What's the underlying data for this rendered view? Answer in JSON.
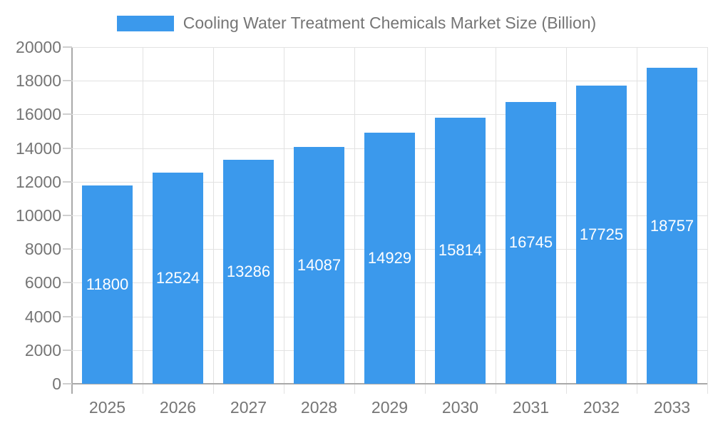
{
  "chart_data": {
    "type": "bar",
    "title": "Cooling Water Treatment Chemicals Market Size (Billion)",
    "categories": [
      "2025",
      "2026",
      "2027",
      "2028",
      "2029",
      "2030",
      "2031",
      "2032",
      "2033"
    ],
    "values": [
      11800,
      12524,
      13286,
      14087,
      14929,
      15814,
      16745,
      17725,
      18757
    ],
    "series": [
      {
        "name": "Cooling Water Treatment Chemicals Market Size (Billion)",
        "values": [
          11800,
          12524,
          13286,
          14087,
          14929,
          15814,
          16745,
          17725,
          18757
        ]
      }
    ],
    "xlabel": "",
    "ylabel": "",
    "ylim": [
      0,
      20000
    ],
    "ytick_step": 2000,
    "yticks": [
      0,
      2000,
      4000,
      6000,
      8000,
      10000,
      12000,
      14000,
      16000,
      18000,
      20000
    ],
    "grid": true,
    "legend_position": "top-center",
    "value_labels": "centered-inside-bars",
    "colors": {
      "bar": "#3b99ec",
      "bar_label_text": "#ffffff",
      "gridline": "#e2e2e2",
      "axis_line": "#a9a9a9",
      "tick_text": "#757575",
      "legend_text": "#757575",
      "background": "#ffffff"
    }
  }
}
